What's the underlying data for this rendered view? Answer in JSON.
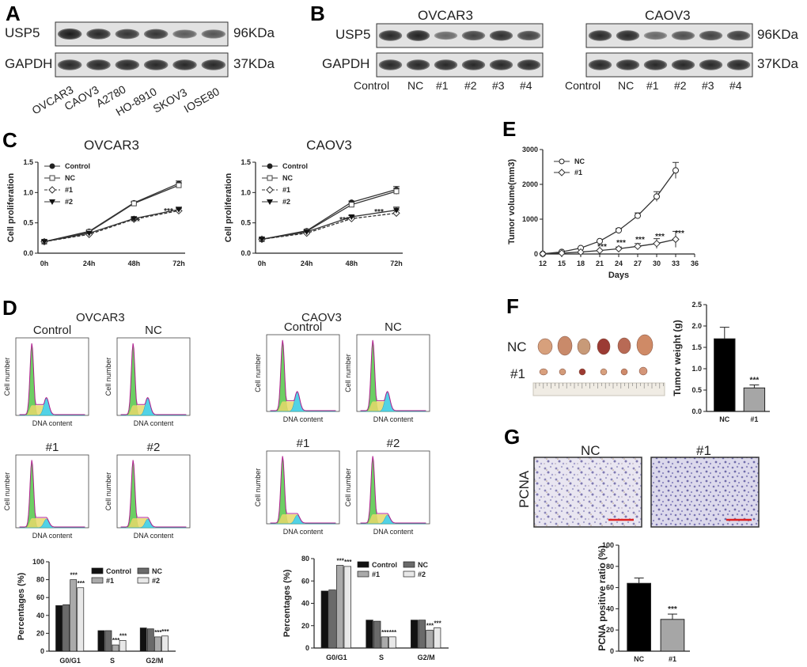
{
  "panel_letters": {
    "A": "A",
    "B": "B",
    "C": "C",
    "D": "D",
    "E": "E",
    "F": "F",
    "G": "G"
  },
  "panelA": {
    "proteins": [
      "USP5",
      "GAPDH"
    ],
    "sizes": [
      "96KDa",
      "37KDa"
    ],
    "lanes": [
      "OVCAR3",
      "CAOV3",
      "A2780",
      "HO-8910",
      "SKOV3",
      "IOSE80"
    ]
  },
  "panelB": {
    "cell_lines": [
      "OVCAR3",
      "CAOV3"
    ],
    "proteins": [
      "USP5",
      "GAPDH"
    ],
    "sizes": [
      "96KDa",
      "37KDa"
    ],
    "lanes": [
      "Control",
      "NC",
      "#1",
      "#2",
      "#3",
      "#4"
    ]
  },
  "panelD": {
    "groups": [
      "OVCAR3",
      "CAOV3"
    ],
    "hist_labels": [
      "Control",
      "NC",
      "#1",
      "#2"
    ],
    "xlabel": "DNA content",
    "ylabel": "Cell number"
  },
  "panelF": {
    "rows": [
      "NC",
      "#1"
    ]
  },
  "panelG": {
    "stain": "PCNA",
    "images": [
      "NC",
      "#1"
    ]
  },
  "chart_data": [
    {
      "id": "C1",
      "type": "line",
      "title": "OVCAR3",
      "xlabel": "",
      "ylabel": "Cell proliferation",
      "categories": [
        "0h",
        "24h",
        "48h",
        "72h"
      ],
      "ylim": [
        0,
        1.5
      ],
      "yticks": [
        0.0,
        0.5,
        1.0,
        1.5
      ],
      "series": [
        {
          "name": "Control",
          "values": [
            0.19,
            0.36,
            0.83,
            1.15
          ]
        },
        {
          "name": "NC",
          "values": [
            0.19,
            0.35,
            0.82,
            1.12
          ]
        },
        {
          "name": "#1",
          "values": [
            0.19,
            0.31,
            0.56,
            0.7
          ]
        },
        {
          "name": "#2",
          "values": [
            0.19,
            0.33,
            0.57,
            0.72
          ]
        }
      ],
      "annotations": [
        "***",
        "***"
      ]
    },
    {
      "id": "C2",
      "type": "line",
      "title": "CAOV3",
      "xlabel": "",
      "ylabel": "Cell proliferation",
      "categories": [
        "0h",
        "24h",
        "48h",
        "72h"
      ],
      "ylim": [
        0,
        1.5
      ],
      "yticks": [
        0.0,
        0.5,
        1.0,
        1.5
      ],
      "series": [
        {
          "name": "Control",
          "values": [
            0.23,
            0.37,
            0.84,
            1.05
          ]
        },
        {
          "name": "NC",
          "values": [
            0.23,
            0.36,
            0.8,
            1.02
          ]
        },
        {
          "name": "#1",
          "values": [
            0.23,
            0.33,
            0.57,
            0.66
          ]
        },
        {
          "name": "#2",
          "values": [
            0.23,
            0.35,
            0.6,
            0.71
          ]
        }
      ],
      "annotations": [
        "***",
        "***"
      ]
    },
    {
      "id": "E",
      "type": "line",
      "title": "",
      "xlabel": "Days",
      "ylabel": "Tumor volume(mm3)",
      "x": [
        12,
        15,
        18,
        21,
        24,
        27,
        30,
        33
      ],
      "xlim": [
        12,
        36
      ],
      "xticks": [
        12,
        15,
        18,
        21,
        24,
        27,
        30,
        33,
        36
      ],
      "ylim": [
        0,
        3000
      ],
      "yticks": [
        0,
        1000,
        2000,
        3000
      ],
      "series": [
        {
          "name": "NC",
          "values": [
            5,
            60,
            170,
            370,
            680,
            1100,
            1650,
            2400
          ]
        },
        {
          "name": "#1",
          "values": [
            5,
            25,
            55,
            100,
            150,
            220,
            300,
            420
          ]
        }
      ],
      "annotations": [
        "***",
        "***",
        "***",
        "***",
        "***"
      ]
    },
    {
      "id": "D1",
      "type": "bar",
      "title": "",
      "xlabel": "",
      "ylabel": "Percentages (%)",
      "categories": [
        "G0/G1",
        "S",
        "G2/M"
      ],
      "ylim": [
        0,
        100
      ],
      "yticks": [
        0,
        20,
        40,
        60,
        80,
        100
      ],
      "series": [
        {
          "name": "Control",
          "values": [
            51,
            23,
            26
          ]
        },
        {
          "name": "NC",
          "values": [
            52,
            23,
            25
          ]
        },
        {
          "name": "#1",
          "values": [
            80,
            7,
            16
          ]
        },
        {
          "name": "#2",
          "values": [
            71,
            12,
            17
          ]
        }
      ],
      "annotations": [
        "***",
        "***",
        "***",
        "***",
        "***",
        "***"
      ]
    },
    {
      "id": "D2",
      "type": "bar",
      "title": "",
      "xlabel": "",
      "ylabel": "Percentages (%)",
      "categories": [
        "G0/G1",
        "S",
        "G2/M"
      ],
      "ylim": [
        0,
        80
      ],
      "yticks": [
        0,
        20,
        40,
        60,
        80
      ],
      "series": [
        {
          "name": "Control",
          "values": [
            51,
            25,
            25
          ]
        },
        {
          "name": "NC",
          "values": [
            52,
            24,
            25
          ]
        },
        {
          "name": "#1",
          "values": [
            74,
            10,
            16
          ]
        },
        {
          "name": "#2",
          "values": [
            73,
            10,
            18
          ]
        }
      ],
      "annotations": [
        "***",
        "***",
        "***",
        "***",
        "***",
        "***"
      ]
    },
    {
      "id": "F",
      "type": "bar",
      "title": "",
      "xlabel": "",
      "ylabel": "Tumor weight (g)",
      "categories": [
        "NC",
        "#1"
      ],
      "values": [
        1.7,
        0.55
      ],
      "errors": [
        0.27,
        0.07
      ],
      "ylim": [
        0,
        2.5
      ],
      "yticks": [
        0.0,
        0.5,
        1.0,
        1.5,
        2.0,
        2.5
      ],
      "annotations": [
        "***"
      ]
    },
    {
      "id": "G",
      "type": "bar",
      "title": "",
      "xlabel": "",
      "ylabel": "PCNA positive ratio (%)",
      "categories": [
        "NC",
        "#1"
      ],
      "values": [
        64,
        30
      ],
      "errors": [
        5,
        5
      ],
      "ylim": [
        0,
        100
      ],
      "yticks": [
        0,
        20,
        40,
        60,
        80,
        100
      ],
      "annotations": [
        "***"
      ]
    }
  ]
}
